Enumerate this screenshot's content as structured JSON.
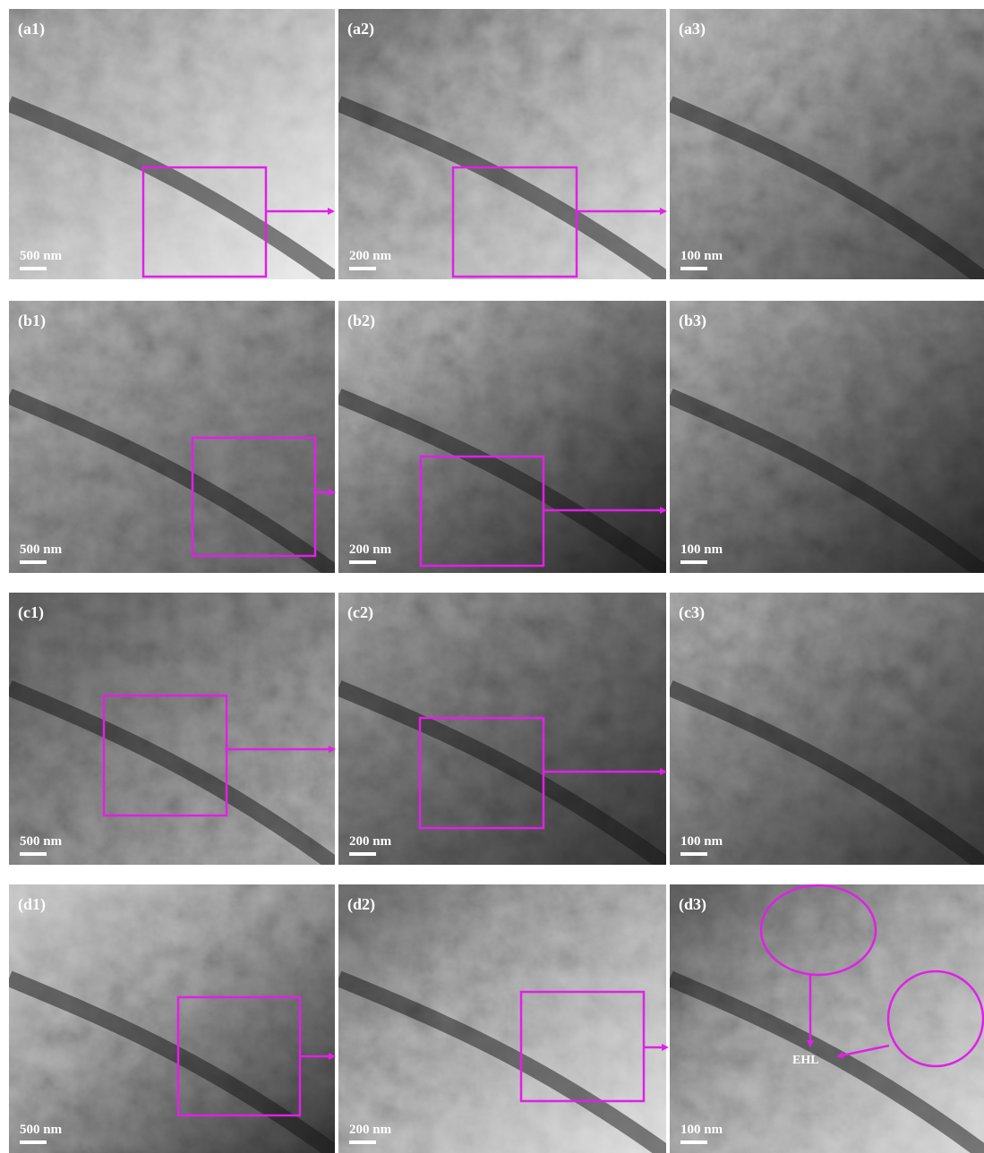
{
  "panels": [
    {
      "label": "(a1)",
      "scale": "500 nm"
    },
    {
      "label": "(a2)",
      "scale": "200 nm"
    },
    {
      "label": "(a3)",
      "scale": "100 nm"
    },
    {
      "label": "(b1)",
      "scale": "500 nm"
    },
    {
      "label": "(b2)",
      "scale": "200 nm"
    },
    {
      "label": "(b3)",
      "scale": "100 nm"
    },
    {
      "label": "(c1)",
      "scale": "500 nm"
    },
    {
      "label": "(c2)",
      "scale": "200 nm"
    },
    {
      "label": "(c3)",
      "scale": "100 nm"
    },
    {
      "label": "(d1)",
      "scale": "500 nm"
    },
    {
      "label": "(d2)",
      "scale": "200 nm"
    },
    {
      "label": "(d3)",
      "scale": "100 nm"
    }
  ],
  "annotation": "EHL"
}
